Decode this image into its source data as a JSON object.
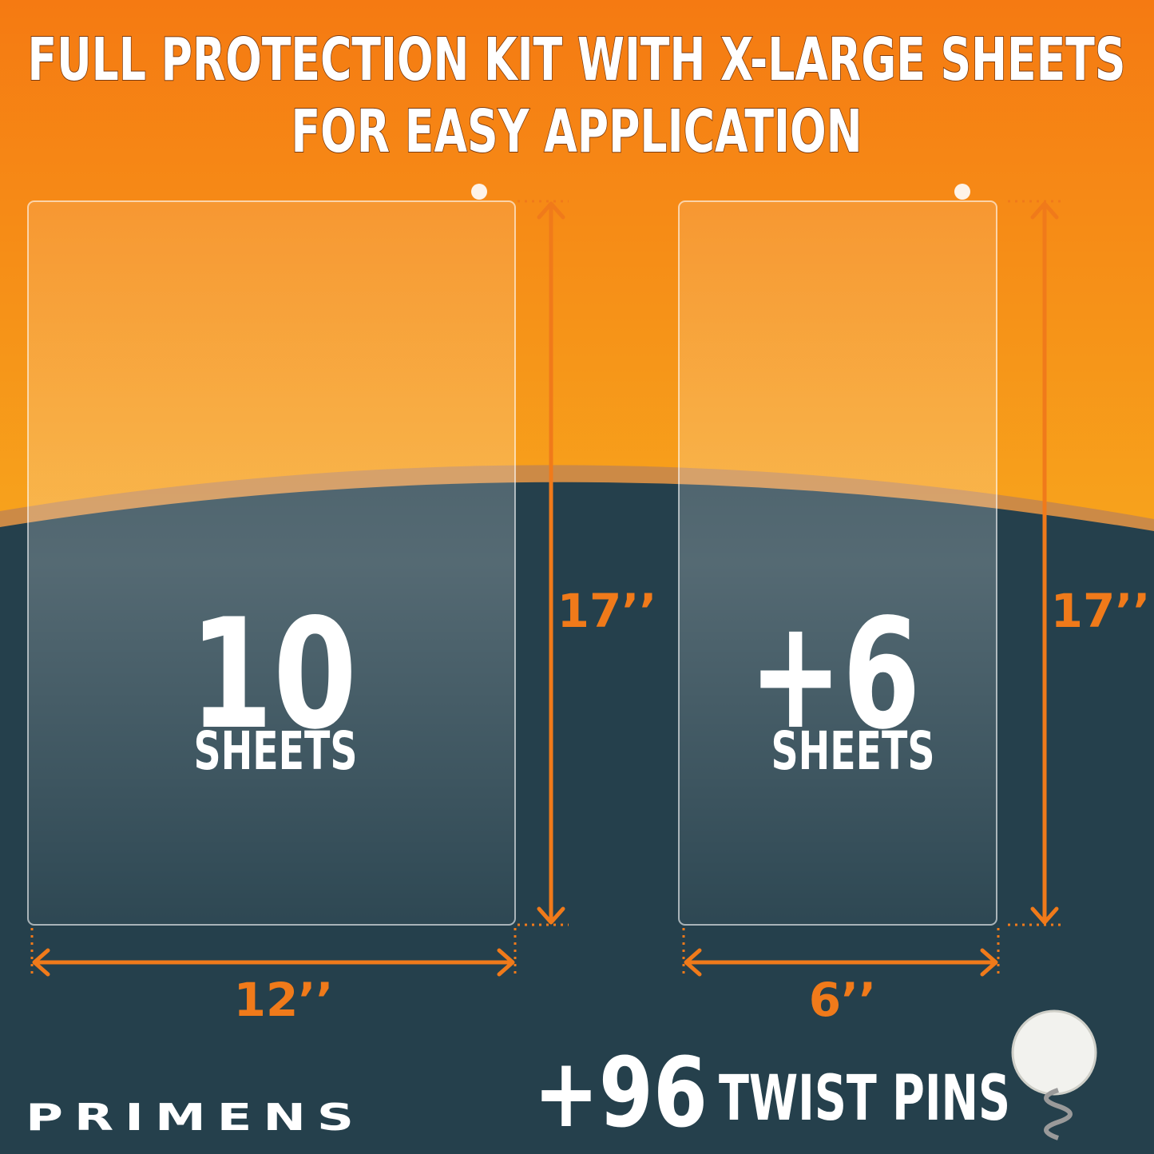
{
  "header": {
    "title_lines": [
      "FULL PROTECTION KIT WITH X-LARGE SHEETS",
      "FOR EASY APPLICATION"
    ]
  },
  "sheets": [
    {
      "count": "10",
      "unit": "SHEETS",
      "height": "17’’",
      "width": "12’’"
    },
    {
      "count": "+6",
      "unit": "SHEETS",
      "height": "17’’",
      "width": "6’’"
    }
  ],
  "pins": {
    "count": "+96",
    "label": "TWIST PINS"
  },
  "brand": "PRIMENS"
}
